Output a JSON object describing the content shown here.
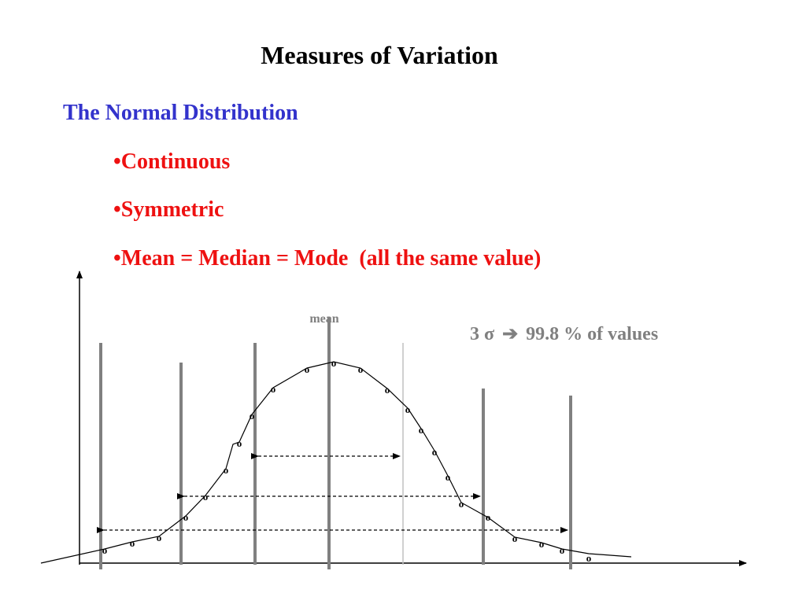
{
  "slide": {
    "title": "Measures of Variation",
    "subtitle": "The Normal Distribution",
    "bullets": [
      "•Continuous",
      "•Symmetric",
      "•Mean = Median = Mode  (all the same value)"
    ]
  },
  "diagram": {
    "mean_label": "mean",
    "point_marker": "o",
    "annotation": {
      "left": "3 σ",
      "arrow_icon": "right-arrow-icon",
      "right": "99.8 % of values"
    }
  },
  "colors": {
    "title": "#000000",
    "subtitle": "#3333cc",
    "bullets": "#ee1111",
    "annotation": "#808080",
    "sigma_lines": "#808080"
  }
}
